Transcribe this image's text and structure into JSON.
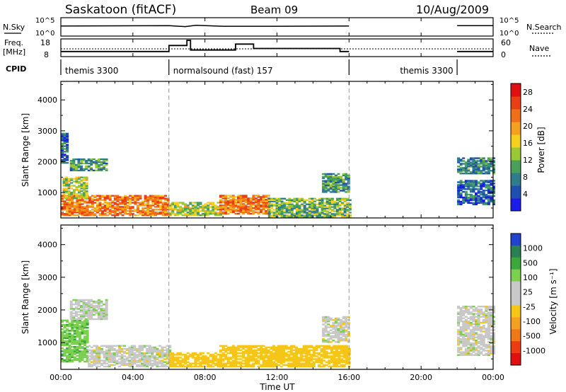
{
  "header": {
    "station": "Saskatoon (fitACF)",
    "beam": "Beam 09",
    "date": "10/Aug/2009"
  },
  "noise_panel": {
    "left_label": "N.Sky",
    "left_ticks": [
      "10^5",
      "10^0"
    ],
    "right_ticks": [
      "10^5",
      "10^0"
    ],
    "right_label": "N.Search"
  },
  "freq_panel": {
    "left_label_line1": "Freq.",
    "left_label_line2": "[MHz]",
    "left_ticks": [
      "18",
      "8"
    ],
    "right_ticks": [
      "60",
      "0"
    ],
    "right_label": "Nave"
  },
  "cpid_panel": {
    "label": "CPID",
    "segments": [
      {
        "name": "themis 3300",
        "start_h": 0,
        "end_h": 6
      },
      {
        "name": "normalsound (fast) 157",
        "start_h": 6,
        "end_h": 16
      },
      {
        "name": "themis 3300",
        "start_h": 16,
        "end_h": 24
      }
    ]
  },
  "time_axis": {
    "label": "Time UT",
    "ticks": [
      "00:00",
      "04:00",
      "08:00",
      "12:00",
      "16:00",
      "20:00",
      "00:00"
    ]
  },
  "range_axis": {
    "label": "Slant Range [km]",
    "ticks": [
      "1000",
      "2000",
      "3000",
      "4000"
    ]
  },
  "power_colorbar": {
    "label": "Power [dB]",
    "ticks": [
      "4",
      "8",
      "12",
      "16",
      "20",
      "24",
      "28"
    ],
    "colors": [
      "#1c1ce8",
      "#1f4fb0",
      "#2f7c8c",
      "#4aa05a",
      "#9ac832",
      "#f5d020",
      "#f5a020",
      "#f07018",
      "#e84014",
      "#e01010"
    ]
  },
  "velocity_colorbar": {
    "label": "Velocity [m s⁻¹]",
    "ticks": [
      "1000",
      "500",
      "100",
      "25",
      "-25",
      "-100",
      "-500",
      "-1000"
    ],
    "colors": [
      "#2244cc",
      "#2a8050",
      "#3ca83c",
      "#7cd050",
      "#c8c8c8",
      "#c8c8c8",
      "#f5c518",
      "#f5a020",
      "#f07818",
      "#ec3c14",
      "#e01010"
    ]
  },
  "chart_data": {
    "type": "heatmap",
    "title": "Saskatoon (fitACF)  Beam 09  10/Aug/2009",
    "xlabel": "Time UT",
    "ylabel": "Slant Range [km]",
    "xlim_hours": [
      0,
      24
    ],
    "ylim_km": [
      180,
      4600
    ],
    "data_gap_hours": [
      16,
      22
    ],
    "panels": [
      {
        "quantity": "Power [dB]",
        "clim": [
          0,
          30
        ],
        "regions": [
          {
            "t": [
              0.0,
              6.0
            ],
            "r": [
              250,
              900
            ],
            "value": 22
          },
          {
            "t": [
              0.1,
              1.5
            ],
            "r": [
              800,
              1500
            ],
            "value": 14
          },
          {
            "t": [
              0.5,
              2.5
            ],
            "r": [
              1700,
              2100
            ],
            "value": 10
          },
          {
            "t": [
              0.0,
              0.4
            ],
            "r": [
              1900,
              2900
            ],
            "value": 6
          },
          {
            "t": [
              6.0,
              8.8
            ],
            "r": [
              250,
              700
            ],
            "value": 14
          },
          {
            "t": [
              8.8,
              11.5
            ],
            "r": [
              300,
              900
            ],
            "value": 22
          },
          {
            "t": [
              11.5,
              16.0
            ],
            "r": [
              200,
              800
            ],
            "value": 12
          },
          {
            "t": [
              14.5,
              16.0
            ],
            "r": [
              1000,
              1600
            ],
            "value": 10
          },
          {
            "t": [
              22.0,
              24.0
            ],
            "r": [
              600,
              1400
            ],
            "value": 6
          },
          {
            "t": [
              22.0,
              24.0
            ],
            "r": [
              1600,
              2100
            ],
            "value": 8
          }
        ]
      },
      {
        "quantity": "Velocity [m s-1]",
        "clim": [
          -1000,
          1000
        ],
        "regions": [
          {
            "t": [
              0.0,
              1.5
            ],
            "r": [
              400,
              1700
            ],
            "value": 80
          },
          {
            "t": [
              1.5,
              6.0
            ],
            "r": [
              250,
              900
            ],
            "value": 0
          },
          {
            "t": [
              0.5,
              2.5
            ],
            "r": [
              1700,
              2300
            ],
            "value": 10
          },
          {
            "t": [
              6.0,
              8.8
            ],
            "r": [
              250,
              700
            ],
            "value": -60
          },
          {
            "t": [
              8.8,
              16.0
            ],
            "r": [
              250,
              900
            ],
            "value": -70
          },
          {
            "t": [
              14.5,
              16.0
            ],
            "r": [
              1000,
              1800
            ],
            "value": 0
          },
          {
            "t": [
              22.0,
              24.0
            ],
            "r": [
              600,
              2100
            ],
            "value": 0
          }
        ]
      }
    ],
    "sky_noise_log10": [
      {
        "t": 0.0,
        "v": 2.8
      },
      {
        "t": 6.0,
        "v": 2.9
      },
      {
        "t": 6.9,
        "v": 2.6
      },
      {
        "t": 7.5,
        "v": 3.0
      },
      {
        "t": 9.0,
        "v": 2.7
      },
      {
        "t": 12.0,
        "v": 2.7
      },
      {
        "t": 16.0,
        "v": 2.8
      },
      {
        "t": 22.0,
        "v": 2.9
      },
      {
        "t": 24.0,
        "v": 2.9
      }
    ],
    "frequency_mhz": [
      {
        "t": 0.0,
        "v": 10.5
      },
      {
        "t": 6.0,
        "v": 10.5
      },
      {
        "t": 6.0,
        "v": 14.5
      },
      {
        "t": 7.0,
        "v": 14.5
      },
      {
        "t": 7.0,
        "v": 18
      },
      {
        "t": 7.2,
        "v": 18
      },
      {
        "t": 7.2,
        "v": 11.5
      },
      {
        "t": 9.7,
        "v": 11.5
      },
      {
        "t": 9.7,
        "v": 15.5
      },
      {
        "t": 10.7,
        "v": 15.5
      },
      {
        "t": 10.7,
        "v": 12.5
      },
      {
        "t": 15.5,
        "v": 12.5
      },
      {
        "t": 15.5,
        "v": 10.5
      },
      {
        "t": 16.0,
        "v": 10.5
      },
      {
        "t": 22.0,
        "v": 10.5
      },
      {
        "t": 24.0,
        "v": 10.5
      }
    ]
  }
}
